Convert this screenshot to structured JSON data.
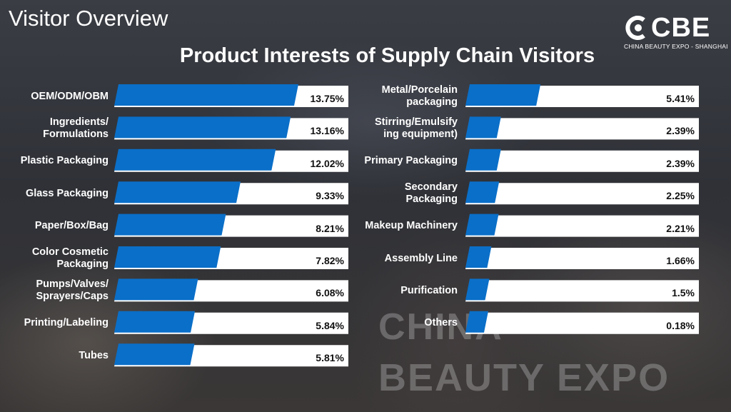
{
  "header": {
    "page_title": "Visitor Overview",
    "logo": {
      "name": "CBE",
      "tagline": "CHINA BEAUTY EXPO - SHANGHAI",
      "icon": "cbe-logo-mark"
    }
  },
  "watermark": {
    "line1": "CHINA",
    "line2": "BEAUTY EXPO"
  },
  "colors": {
    "bar": "#0a6fc8",
    "track": "#ffffff",
    "label": "#ffffff",
    "value": "#111111"
  },
  "chart_data": {
    "type": "bar",
    "orientation": "horizontal",
    "title": "Product Interests of Supply Chain Visitors",
    "unit": "%",
    "xlim": [
      0,
      15
    ],
    "grid": false,
    "legend": "none",
    "categories": [
      "OEM/ODM/OBM",
      "Ingredients/\nFormulations",
      "Plastic Packaging",
      "Glass Packaging",
      "Paper/Box/Bag",
      "Color Cosmetic\nPackaging",
      "Pumps/Valves/\nSprayers/Caps",
      "Printing/Labeling",
      "Tubes",
      "Metal/Porcelain\npackaging",
      "Stirring/Emulsify\ning equipment)",
      "Primary Packaging",
      "Secondary\nPackaging",
      "Makeup Machinery",
      "Assembly Line",
      "Purification",
      "Others"
    ],
    "values": [
      13.75,
      13.16,
      12.02,
      9.33,
      8.21,
      7.82,
      6.08,
      5.84,
      5.81,
      5.41,
      2.39,
      2.39,
      2.25,
      2.21,
      1.66,
      1.5,
      0.18
    ],
    "value_labels": [
      "13.75%",
      "13.16%",
      "12.02%",
      "9.33%",
      "8.21%",
      "7.82%",
      "6.08%",
      "5.84%",
      "5.81%",
      "5.41%",
      "2.39%",
      "2.39%",
      "2.25%",
      "2.21%",
      "1.66%",
      "1.5%",
      "0.18%"
    ]
  }
}
